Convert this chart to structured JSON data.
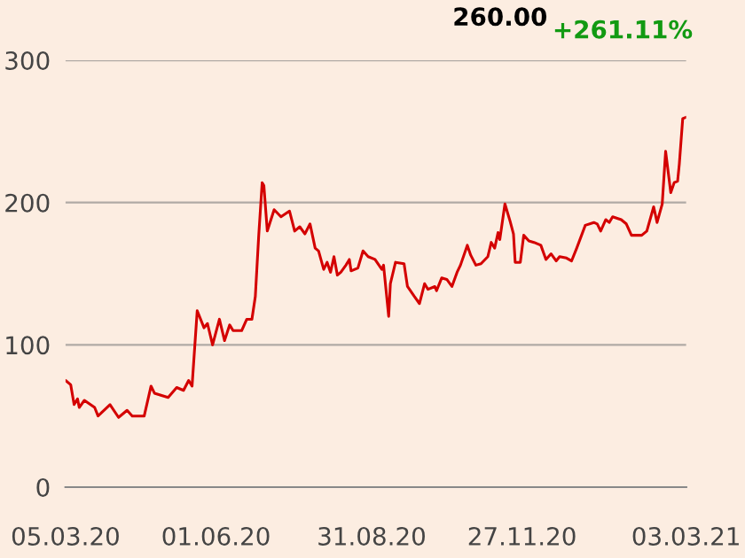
{
  "chart_data": {
    "type": "line",
    "annotations": [
      "260.00",
      "+261.11%"
    ],
    "xlim": [
      "2020-03-05",
      "2021-03-03"
    ],
    "xticks": [
      {
        "value": "2020-03-05",
        "label": "05.03.20"
      },
      {
        "value": "2020-06-01",
        "label": "01.06.20"
      },
      {
        "value": "2020-08-31",
        "label": "31.08.20"
      },
      {
        "value": "2020-11-27",
        "label": "27.11.20"
      },
      {
        "value": "2021-03-03",
        "label": "03.03.21"
      }
    ],
    "ylim": [
      0,
      300
    ],
    "yticks": [
      0,
      100,
      200,
      300
    ],
    "grid": "y",
    "legend": false,
    "series": [
      {
        "color": "#d40000",
        "x": [
          "2020-03-05",
          "2020-03-08",
          "2020-03-10",
          "2020-03-12",
          "2020-03-13",
          "2020-03-16",
          "2020-03-22",
          "2020-03-24",
          "2020-03-31",
          "2020-04-05",
          "2020-04-10",
          "2020-04-13",
          "2020-04-20",
          "2020-04-24",
          "2020-04-26",
          "2020-05-04",
          "2020-05-09",
          "2020-05-13",
          "2020-05-16",
          "2020-05-18",
          "2020-05-21",
          "2020-05-25",
          "2020-05-27",
          "2020-05-30",
          "2020-06-03",
          "2020-06-06",
          "2020-06-09",
          "2020-06-11",
          "2020-06-16",
          "2020-06-19",
          "2020-06-22",
          "2020-06-24",
          "2020-06-26",
          "2020-06-28",
          "2020-06-29",
          "2020-07-01",
          "2020-07-05",
          "2020-07-09",
          "2020-07-14",
          "2020-07-17",
          "2020-07-20",
          "2020-07-23",
          "2020-07-26",
          "2020-07-29",
          "2020-07-31",
          "2020-08-03",
          "2020-08-05",
          "2020-08-07",
          "2020-08-09",
          "2020-08-11",
          "2020-08-13",
          "2020-08-16",
          "2020-08-18",
          "2020-08-19",
          "2020-08-23",
          "2020-08-26",
          "2020-08-29",
          "2020-09-02",
          "2020-09-06",
          "2020-09-07",
          "2020-09-10",
          "2020-09-11",
          "2020-09-14",
          "2020-09-19",
          "2020-09-21",
          "2020-09-25",
          "2020-09-28",
          "2020-10-01",
          "2020-10-03",
          "2020-10-07",
          "2020-10-08",
          "2020-10-11",
          "2020-10-14",
          "2020-10-17",
          "2020-10-20",
          "2020-10-22",
          "2020-10-26",
          "2020-10-28",
          "2020-10-31",
          "2020-11-03",
          "2020-11-07",
          "2020-11-09",
          "2020-11-11",
          "2020-11-13",
          "2020-11-14",
          "2020-11-17",
          "2020-11-20",
          "2020-11-22",
          "2020-11-23",
          "2020-11-26",
          "2020-11-28",
          "2020-12-01",
          "2020-12-04",
          "2020-12-08",
          "2020-12-11",
          "2020-12-14",
          "2020-12-17",
          "2020-12-19",
          "2020-12-23",
          "2020-12-26",
          "2020-12-29",
          "2021-01-03",
          "2021-01-08",
          "2021-01-10",
          "2021-01-12",
          "2021-01-15",
          "2021-01-17",
          "2021-01-19",
          "2021-01-24",
          "2021-01-27",
          "2021-01-30",
          "2021-02-05",
          "2021-02-08",
          "2021-02-12",
          "2021-02-14",
          "2021-02-17",
          "2021-02-19",
          "2021-02-22",
          "2021-02-24",
          "2021-02-26",
          "2021-02-27",
          "2021-03-01",
          "2021-03-03"
        ],
        "values": [
          75,
          72,
          58,
          62,
          56,
          61,
          56,
          50,
          58,
          49,
          54,
          50,
          50,
          71,
          66,
          63,
          70,
          68,
          75,
          71,
          124,
          112,
          115,
          100,
          118,
          103,
          114,
          110,
          110,
          118,
          118,
          134,
          177,
          214,
          212,
          180,
          195,
          190,
          194,
          180,
          183,
          178,
          185,
          168,
          166,
          153,
          158,
          151,
          162,
          149,
          151,
          156,
          160,
          152,
          154,
          166,
          162,
          160,
          153,
          156,
          120,
          143,
          158,
          157,
          141,
          134,
          129,
          143,
          139,
          141,
          138,
          147,
          146,
          141,
          151,
          156,
          170,
          163,
          156,
          157,
          162,
          172,
          168,
          179,
          174,
          199,
          187,
          178,
          158,
          158,
          177,
          173,
          172,
          170,
          160,
          164,
          159,
          162,
          161,
          159,
          168,
          184,
          186,
          185,
          180,
          188,
          186,
          190,
          188,
          185,
          177,
          177,
          180,
          197,
          186,
          199,
          236,
          207,
          214,
          215,
          227,
          259,
          260
        ]
      }
    ]
  }
}
